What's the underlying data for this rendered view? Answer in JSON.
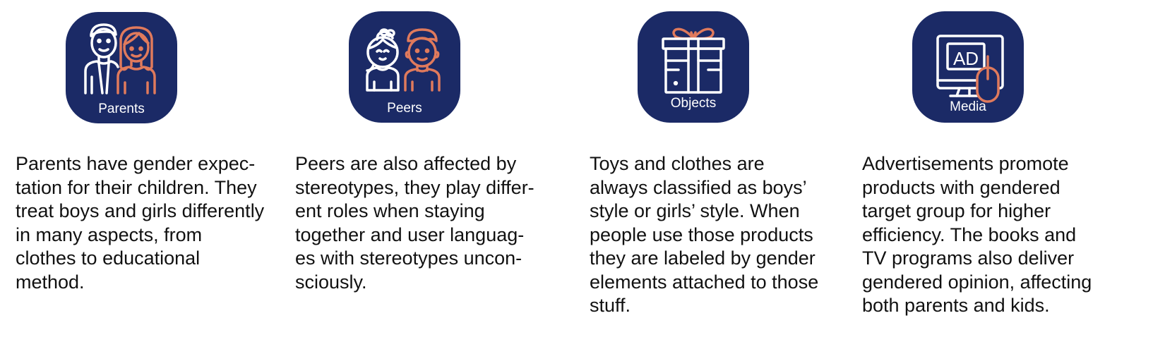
{
  "colors": {
    "tile_background": "#1b2a66",
    "icon_white": "#ffffff",
    "icon_accent": "#e07a5c",
    "text": "#111111"
  },
  "cards": [
    {
      "label": "Parents",
      "icon": "parents-icon",
      "description": [
        "Parents have gender expec-",
        "tation for their children. They",
        "treat boys and girls differently",
        "in many aspects, from",
        "clothes to educational",
        "method."
      ]
    },
    {
      "label": "Peers",
      "icon": "peers-icon",
      "description": [
        "Peers are also affected by",
        "stereotypes, they play differ-",
        "ent roles when staying",
        "together and user languag-",
        "es with stereotypes uncon-",
        "sciously."
      ]
    },
    {
      "label": "Objects",
      "icon": "gift-box-icon",
      "description": [
        "Toys and clothes are",
        "always classified as boys’",
        "style or girls’ style. When",
        "people use those products",
        "they are labeled by gender",
        "elements attached to those",
        "stuff."
      ]
    },
    {
      "label": "Media",
      "icon": "ad-monitor-icon",
      "ad_text": "AD",
      "description": [
        "Advertisements promote",
        "products with gendered",
        "target group for higher",
        "efficiency. The books and",
        "TV programs also deliver",
        "gendered opinion, affecting",
        "both parents and kids."
      ]
    }
  ]
}
